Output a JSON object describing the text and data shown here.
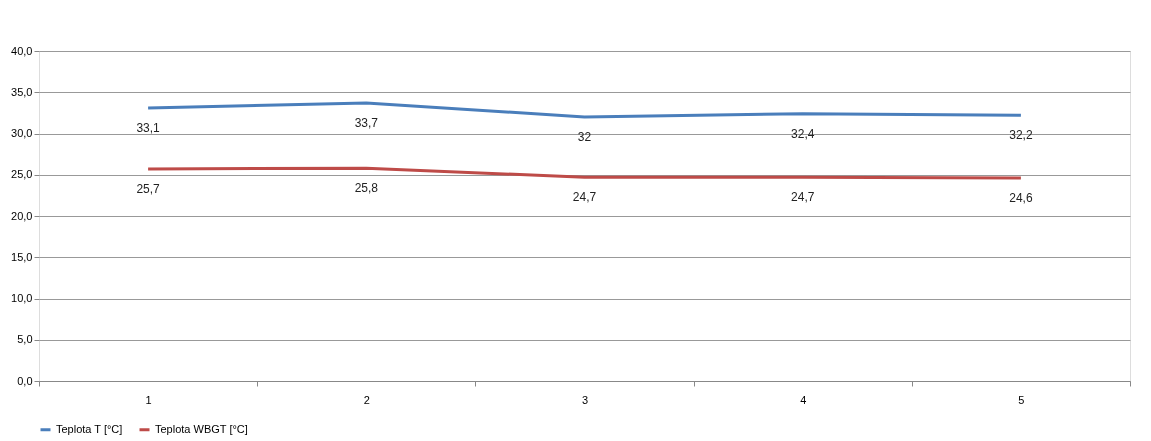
{
  "chart_data": {
    "type": "line",
    "categories": [
      "1",
      "2",
      "3",
      "4",
      "5"
    ],
    "series": [
      {
        "name": "Teplota T [°C]",
        "color": "#4a7ebb",
        "values": [
          33.1,
          33.7,
          32,
          32.4,
          32.2
        ],
        "value_labels": [
          "33,1",
          "33,7",
          "32",
          "32,4",
          "32,2"
        ]
      },
      {
        "name": "Teplota WBGT [°C]",
        "color": "#be4b48",
        "values": [
          25.7,
          25.8,
          24.7,
          24.7,
          24.6
        ],
        "value_labels": [
          "25,7",
          "25,8",
          "24,7",
          "24,7",
          "24,6"
        ]
      }
    ],
    "ylim": [
      0,
      40
    ],
    "yticks": [
      {
        "value": 0,
        "label": "0,0"
      },
      {
        "value": 5,
        "label": "5,0"
      },
      {
        "value": 10,
        "label": "10,0"
      },
      {
        "value": 15,
        "label": "15,0"
      },
      {
        "value": 20,
        "label": "20,0"
      },
      {
        "value": 25,
        "label": "25,0"
      },
      {
        "value": 30,
        "label": "30,0"
      },
      {
        "value": 35,
        "label": "35,0"
      },
      {
        "value": 40,
        "label": "40,0"
      }
    ],
    "grid": "y",
    "legend": "bottom",
    "marker": "none",
    "line_style": "solid"
  }
}
